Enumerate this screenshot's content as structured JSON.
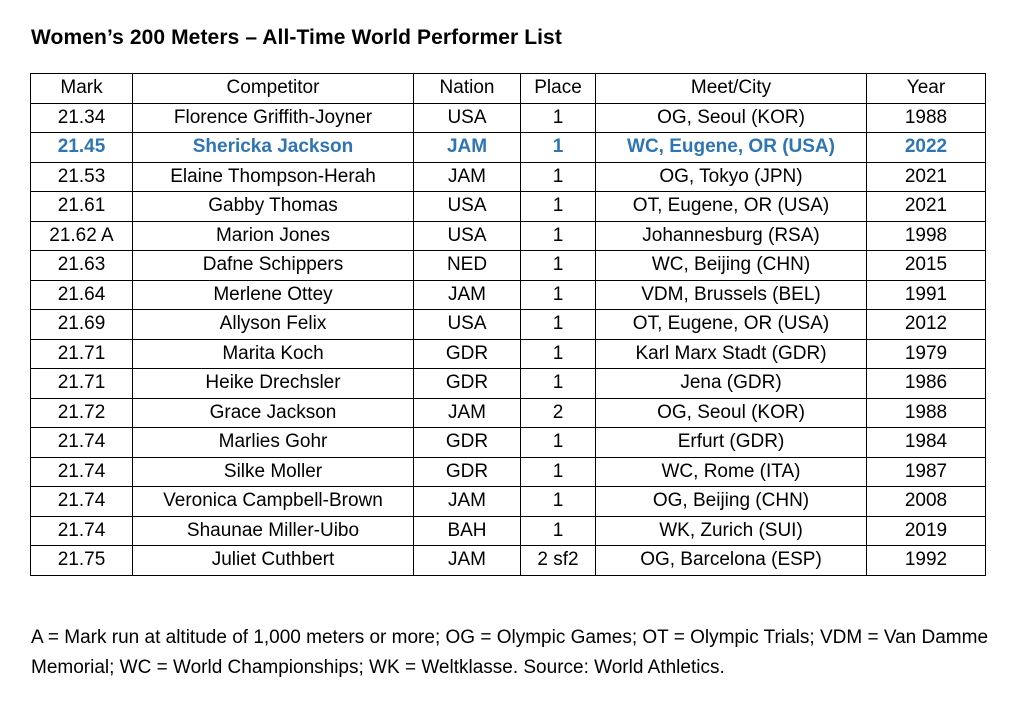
{
  "title": "Women’s 200 Meters – All-Time World Performer List",
  "table": {
    "headers": [
      "Mark",
      "Competitor",
      "Nation",
      "Place",
      "Meet/City",
      "Year"
    ],
    "rows": [
      {
        "mark": "21.34",
        "competitor": "Florence Griffith-Joyner",
        "nation": "USA",
        "place": "1",
        "meet": "OG, Seoul (KOR)",
        "year": "1988",
        "highlight": false
      },
      {
        "mark": "21.45",
        "competitor": "Shericka Jackson",
        "nation": "JAM",
        "place": "1",
        "meet": "WC, Eugene, OR (USA)",
        "year": "2022",
        "highlight": true
      },
      {
        "mark": "21.53",
        "competitor": "Elaine Thompson-Herah",
        "nation": "JAM",
        "place": "1",
        "meet": "OG, Tokyo (JPN)",
        "year": "2021",
        "highlight": false
      },
      {
        "mark": "21.61",
        "competitor": "Gabby Thomas",
        "nation": "USA",
        "place": "1",
        "meet": "OT, Eugene, OR (USA)",
        "year": "2021",
        "highlight": false
      },
      {
        "mark": "21.62 A",
        "competitor": "Marion Jones",
        "nation": "USA",
        "place": "1",
        "meet": "Johannesburg (RSA)",
        "year": "1998",
        "highlight": false
      },
      {
        "mark": "21.63",
        "competitor": "Dafne Schippers",
        "nation": "NED",
        "place": "1",
        "meet": "WC, Beijing (CHN)",
        "year": "2015",
        "highlight": false
      },
      {
        "mark": "21.64",
        "competitor": "Merlene Ottey",
        "nation": "JAM",
        "place": "1",
        "meet": "VDM, Brussels (BEL)",
        "year": "1991",
        "highlight": false
      },
      {
        "mark": "21.69",
        "competitor": "Allyson Felix",
        "nation": "USA",
        "place": "1",
        "meet": "OT, Eugene, OR (USA)",
        "year": "2012",
        "highlight": false
      },
      {
        "mark": "21.71",
        "competitor": "Marita Koch",
        "nation": "GDR",
        "place": "1",
        "meet": "Karl Marx Stadt (GDR)",
        "year": "1979",
        "highlight": false
      },
      {
        "mark": "21.71",
        "competitor": "Heike Drechsler",
        "nation": "GDR",
        "place": "1",
        "meet": "Jena (GDR)",
        "year": "1986",
        "highlight": false
      },
      {
        "mark": "21.72",
        "competitor": "Grace Jackson",
        "nation": "JAM",
        "place": "2",
        "meet": "OG, Seoul (KOR)",
        "year": "1988",
        "highlight": false
      },
      {
        "mark": "21.74",
        "competitor": "Marlies Gohr",
        "nation": "GDR",
        "place": "1",
        "meet": "Erfurt (GDR)",
        "year": "1984",
        "highlight": false
      },
      {
        "mark": "21.74",
        "competitor": "Silke Moller",
        "nation": "GDR",
        "place": "1",
        "meet": "WC, Rome (ITA)",
        "year": "1987",
        "highlight": false
      },
      {
        "mark": "21.74",
        "competitor": "Veronica Campbell-Brown",
        "nation": "JAM",
        "place": "1",
        "meet": "OG, Beijing (CHN)",
        "year": "2008",
        "highlight": false
      },
      {
        "mark": "21.74",
        "competitor": "Shaunae Miller-Uibo",
        "nation": "BAH",
        "place": "1",
        "meet": "WK, Zurich (SUI)",
        "year": "2019",
        "highlight": false
      },
      {
        "mark": "21.75",
        "competitor": "Juliet Cuthbert",
        "nation": "JAM",
        "place": "2 sf2",
        "meet": "OG, Barcelona (ESP)",
        "year": "1992",
        "highlight": false
      }
    ]
  },
  "footnote": "A = Mark run at altitude of 1,000 meters or more; OG = Olympic Games; OT = Olympic Trials; VDM = Van Damme Memorial; WC = World Championships; WK = Weltklasse. Source: World Athletics.",
  "colors": {
    "highlight": "#2e75b6",
    "text": "#000000",
    "border": "#000000",
    "background": "#ffffff"
  }
}
